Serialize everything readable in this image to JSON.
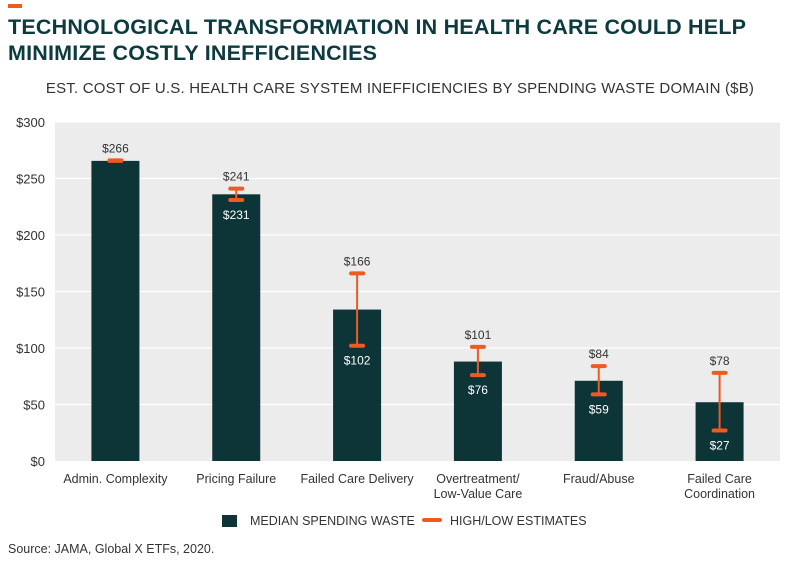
{
  "title": "TECHNOLOGICAL TRANSFORMATION IN HEALTH CARE COULD HELP MINIMIZE COSTLY INEFFICIENCIES",
  "source": "Source: JAMA, Global X ETFs, 2020.",
  "colors": {
    "bar": "#0d3437",
    "estimate": "#f05a22",
    "plot_bg": "#ececec",
    "grid": "#ffffff",
    "title": "#0c3a3e"
  },
  "chart_data": {
    "type": "bar",
    "title": "EST. COST OF U.S. HEALTH CARE SYSTEM INEFFICIENCIES BY SPENDING WASTE DOMAIN ($B)",
    "categories": [
      [
        "Admin. Complexity"
      ],
      [
        "Pricing Failure"
      ],
      [
        "Failed Care Delivery"
      ],
      [
        "Overtreatment/",
        "Low-Value Care"
      ],
      [
        "Fraud/Abuse"
      ],
      [
        "Failed Care",
        "Coordination"
      ]
    ],
    "series": [
      {
        "name": "MEDIAN SPENDING WASTE",
        "values": [
          265.6,
          236,
          134,
          88,
          71,
          52
        ]
      },
      {
        "name": "HIGH/LOW ESTIMATES",
        "high": [
          266,
          241,
          166,
          101,
          84,
          78
        ],
        "low": [
          265.6,
          231,
          102,
          76,
          59,
          27
        ]
      }
    ],
    "high_labels": [
      "$266",
      "$241",
      "$166",
      "$101",
      "$84",
      "$78"
    ],
    "low_labels": [
      "",
      "$231",
      "$102",
      "$76",
      "$59",
      "$27"
    ],
    "yticks": [
      "$300",
      "$250",
      "$200",
      "$150",
      "$100",
      "$50",
      "$0"
    ],
    "ylim": [
      0,
      300
    ],
    "grid": true,
    "legend_position": "bottom"
  }
}
